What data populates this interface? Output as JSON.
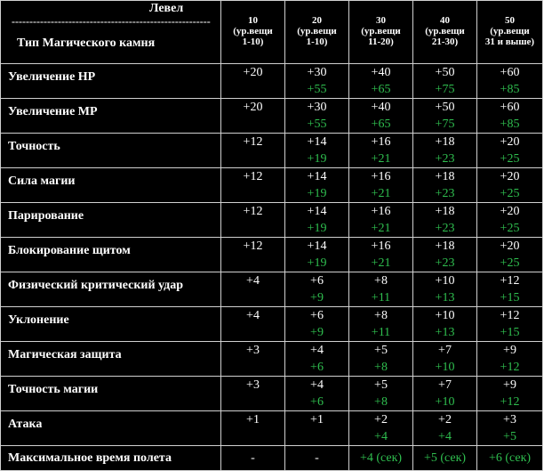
{
  "header": {
    "level_label": "Левел",
    "dashes": "--------------------------------------------------------",
    "type_label": "Тип Магического камня",
    "levels": [
      {
        "num": "10",
        "l1": "(ур.вещи",
        "l2": "1-10)"
      },
      {
        "num": "20",
        "l1": "(ур.вещи",
        "l2": "1-10)"
      },
      {
        "num": "30",
        "l1": "(ур.вещи",
        "l2": "11-20)"
      },
      {
        "num": "40",
        "l1": "(ур.вещи",
        "l2": "21-30)"
      },
      {
        "num": "50",
        "l1": "(ур.вещи",
        "l2": "31 и выше)"
      }
    ]
  },
  "rows": [
    {
      "name": "Увеличение HP",
      "cells": [
        [
          "+20",
          ""
        ],
        [
          "+30",
          "+55"
        ],
        [
          "+40",
          "+65"
        ],
        [
          "+50",
          "+75"
        ],
        [
          "+60",
          "+85"
        ]
      ]
    },
    {
      "name": "Увеличение MP",
      "cells": [
        [
          "+20",
          ""
        ],
        [
          "+30",
          "+55"
        ],
        [
          "+40",
          "+65"
        ],
        [
          "+50",
          "+75"
        ],
        [
          "+60",
          "+85"
        ]
      ]
    },
    {
      "name": "Точность",
      "cells": [
        [
          "+12",
          ""
        ],
        [
          "+14",
          "+19"
        ],
        [
          "+16",
          "+21"
        ],
        [
          "+18",
          "+23"
        ],
        [
          "+20",
          "+25"
        ]
      ]
    },
    {
      "name": "Сила магии",
      "cells": [
        [
          "+12",
          ""
        ],
        [
          "+14",
          "+19"
        ],
        [
          "+16",
          "+21"
        ],
        [
          "+18",
          "+23"
        ],
        [
          "+20",
          "+25"
        ]
      ]
    },
    {
      "name": "Парирование",
      "cells": [
        [
          "+12",
          ""
        ],
        [
          "+14",
          "+19"
        ],
        [
          "+16",
          "+21"
        ],
        [
          "+18",
          "+23"
        ],
        [
          "+20",
          "+25"
        ]
      ]
    },
    {
      "name": "Блокирование щитом",
      "cells": [
        [
          "+12",
          ""
        ],
        [
          "+14",
          "+19"
        ],
        [
          "+16",
          "+21"
        ],
        [
          "+18",
          "+23"
        ],
        [
          "+20",
          "+25"
        ]
      ]
    },
    {
      "name": "Физический критический удар",
      "cells": [
        [
          "+4",
          ""
        ],
        [
          "+6",
          "+9"
        ],
        [
          "+8",
          "+11"
        ],
        [
          "+10",
          "+13"
        ],
        [
          "+12",
          "+15"
        ]
      ]
    },
    {
      "name": "Уклонение",
      "cells": [
        [
          "+4",
          ""
        ],
        [
          "+6",
          "+9"
        ],
        [
          "+8",
          "+11"
        ],
        [
          "+10",
          "+13"
        ],
        [
          "+12",
          "+15"
        ]
      ]
    },
    {
      "name": "Магическая защита",
      "cells": [
        [
          "+3",
          ""
        ],
        [
          "+4",
          "+6"
        ],
        [
          "+5",
          "+8"
        ],
        [
          "+7",
          "+10"
        ],
        [
          "+9",
          "+12"
        ]
      ]
    },
    {
      "name": "Точность магии",
      "cells": [
        [
          "+3",
          ""
        ],
        [
          "+4",
          "+6"
        ],
        [
          "+5",
          "+8"
        ],
        [
          "+7",
          "+10"
        ],
        [
          "+9",
          "+12"
        ]
      ]
    },
    {
      "name": "Атака",
      "cells": [
        [
          "+1",
          ""
        ],
        [
          "+1",
          ""
        ],
        [
          "+2",
          "+4"
        ],
        [
          "+2",
          "+4"
        ],
        [
          "+3",
          "+5"
        ]
      ]
    }
  ],
  "last_row": {
    "name": "Максимальное время полета",
    "cells": [
      [
        "-",
        ""
      ],
      [
        "-",
        ""
      ],
      [
        "",
        "+4 (сек)"
      ],
      [
        "",
        "+5 (сек)"
      ],
      [
        "",
        "+6 (сек)"
      ]
    ]
  },
  "colors": {
    "background": "#000000",
    "text": "#ffffff",
    "accent": "#2fbf4f",
    "border": "#d0d0d0"
  }
}
